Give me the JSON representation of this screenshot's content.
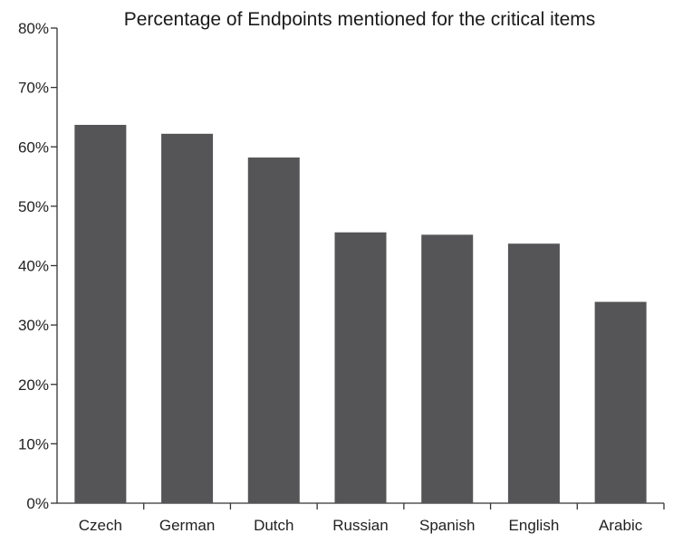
{
  "chart_data": {
    "type": "bar",
    "title": "Percentage of Endpoints mentioned for the critical items",
    "xlabel": "",
    "ylabel": "",
    "categories": [
      "Czech",
      "German",
      "Dutch",
      "Russian",
      "Spanish",
      "English",
      "Arabic"
    ],
    "values": [
      63.7,
      62.2,
      58.2,
      45.6,
      45.2,
      43.7,
      33.9
    ],
    "ylim": [
      0,
      80
    ],
    "yticks": [
      "0%",
      "10%",
      "20%",
      "30%",
      "40%",
      "50%",
      "60%",
      "70%",
      "80%"
    ],
    "grid": false,
    "legend": "none",
    "bar_color": "#555557"
  }
}
